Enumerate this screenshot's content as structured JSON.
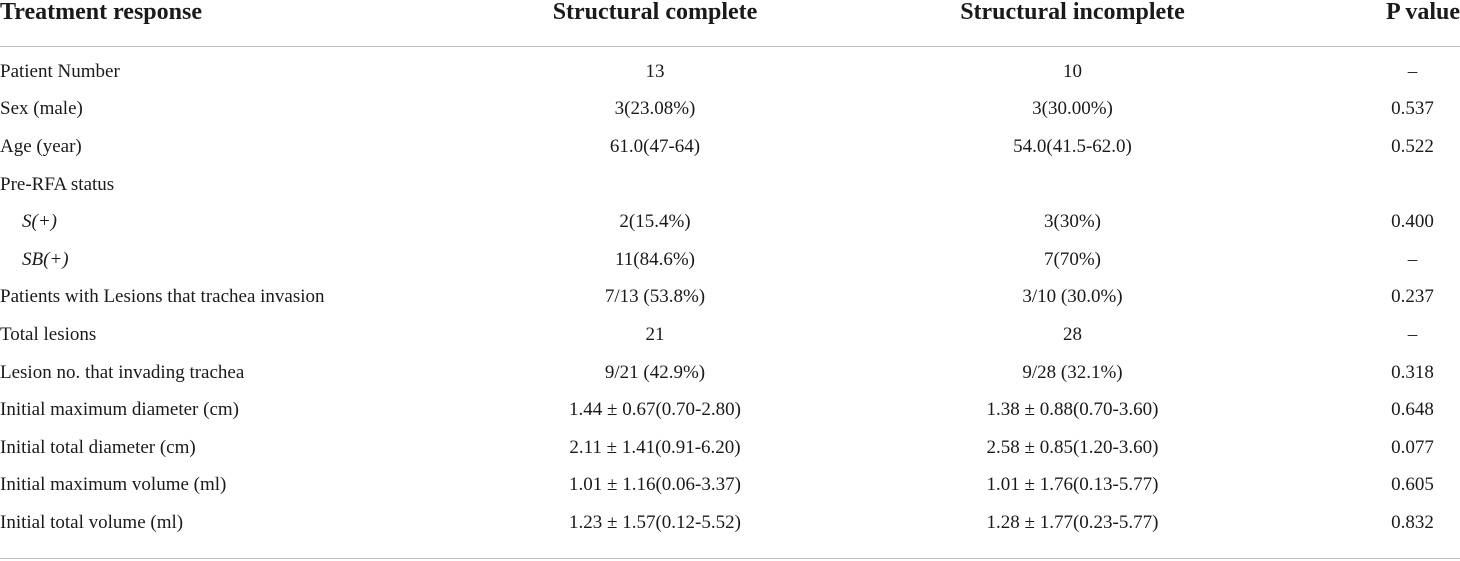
{
  "header": {
    "col1": "Treatment response",
    "col2": "Structural complete",
    "col3": "Structural incomplete",
    "col4": "P value"
  },
  "rows": [
    {
      "label": "Patient Number",
      "complete": "13",
      "incomplete": "10",
      "p": "–"
    },
    {
      "label": "Sex (male)",
      "complete": "3(23.08%)",
      "incomplete": "3(30.00%)",
      "p": "0.537"
    },
    {
      "label": "Age (year)",
      "complete": "61.0(47-64)",
      "incomplete": "54.0(41.5-62.0)",
      "p": "0.522"
    },
    {
      "label": "Pre-RFA status",
      "complete": "",
      "incomplete": "",
      "p": ""
    },
    {
      "label": "S(+)",
      "complete": "2(15.4%)",
      "incomplete": "3(30%)",
      "p": "0.400"
    },
    {
      "label": "SB(+)",
      "complete": "11(84.6%)",
      "incomplete": "7(70%)",
      "p": "–"
    },
    {
      "label": "Patients with Lesions that trachea invasion",
      "complete": "7/13 (53.8%)",
      "incomplete": "3/10 (30.0%)",
      "p": "0.237"
    },
    {
      "label": "Total lesions",
      "complete": "21",
      "incomplete": "28",
      "p": "–"
    },
    {
      "label": "Lesion no. that invading trachea",
      "complete": "9/21 (42.9%)",
      "incomplete": "9/28 (32.1%)",
      "p": "0.318"
    },
    {
      "label": "Initial maximum diameter (cm)",
      "complete": "1.44 ± 0.67(0.70-2.80)",
      "incomplete": "1.38 ± 0.88(0.70-3.60)",
      "p": "0.648"
    },
    {
      "label": "Initial total diameter (cm)",
      "complete": "2.11 ± 1.41(0.91-6.20)",
      "incomplete": "2.58 ± 0.85(1.20-3.60)",
      "p": "0.077"
    },
    {
      "label": "Initial maximum volume (ml)",
      "complete": "1.01 ± 1.16(0.06-3.37)",
      "incomplete": "1.01 ± 1.76(0.13-5.77)",
      "p": "0.605"
    },
    {
      "label": "Initial total volume (ml)",
      "complete": "1.23 ± 1.57(0.12-5.52)",
      "incomplete": "1.28 ± 1.77(0.23-5.77)",
      "p": "0.832"
    }
  ]
}
